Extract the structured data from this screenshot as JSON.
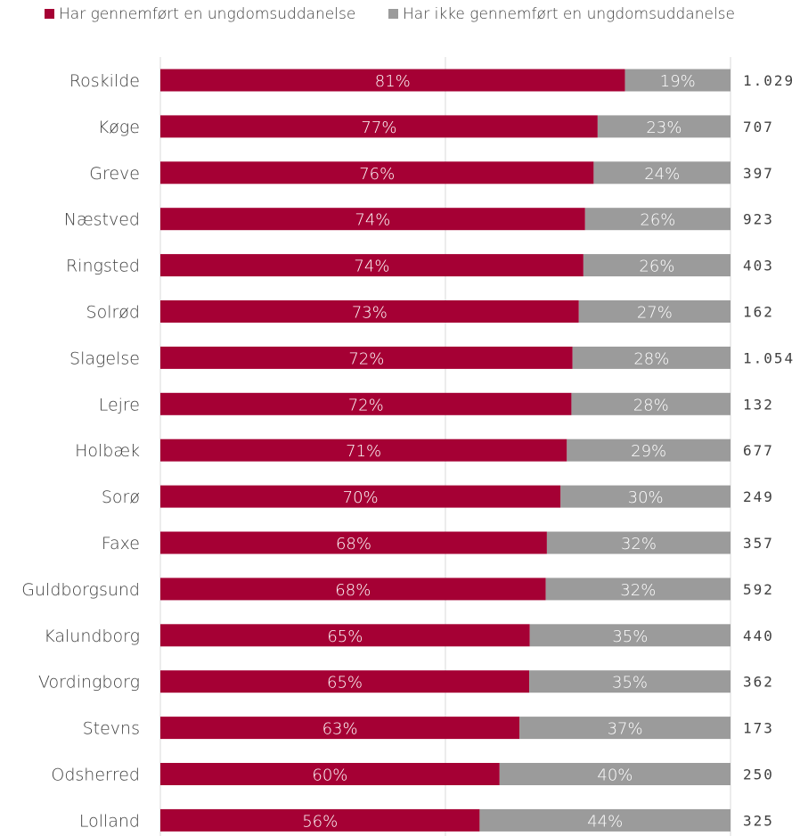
{
  "chart_data": {
    "type": "bar",
    "orientation": "horizontal",
    "stacked": true,
    "percent_stacked": true,
    "title": "",
    "xlabel": "",
    "ylabel": "",
    "xlim": [
      0,
      100
    ],
    "grid": true,
    "legend_position": "top",
    "categories": [
      "Roskilde",
      "Køge",
      "Greve",
      "Næstved",
      "Ringsted",
      "Solrød",
      "Slagelse",
      "Lejre",
      "Holbæk",
      "Sorø",
      "Faxe",
      "Guldborgsund",
      "Kalundborg",
      "Vordingborg",
      "Stevns",
      "Odsherred",
      "Lolland"
    ],
    "series": [
      {
        "name": "Har gennemført en ungdomsuddanelse",
        "color": "#A50034",
        "values": [
          81.5,
          76.7,
          76.0,
          74.5,
          74.2,
          73.4,
          72.3,
          72.1,
          71.3,
          70.2,
          67.8,
          67.6,
          64.8,
          64.7,
          63.0,
          59.5,
          56.0
        ],
        "labels": [
          "81%",
          "77%",
          "76%",
          "74%",
          "74%",
          "73%",
          "72%",
          "72%",
          "71%",
          "70%",
          "68%",
          "68%",
          "65%",
          "65%",
          "63%",
          "60%",
          "56%"
        ]
      },
      {
        "name": "Har ikke gennemført en ungdomsuddanelse",
        "color": "#9B9B9B",
        "values": [
          18.5,
          23.3,
          24.0,
          25.5,
          25.8,
          26.6,
          27.7,
          27.9,
          28.7,
          29.8,
          32.2,
          32.4,
          35.2,
          35.3,
          37.0,
          40.5,
          44.0
        ],
        "labels": [
          "19%",
          "23%",
          "24%",
          "26%",
          "26%",
          "27%",
          "28%",
          "28%",
          "29%",
          "30%",
          "32%",
          "32%",
          "35%",
          "35%",
          "37%",
          "40%",
          "44%"
        ]
      }
    ],
    "n_values": [
      "1.029",
      "707",
      "397",
      "923",
      "403",
      "162",
      "1.054",
      "132",
      "677",
      "249",
      "357",
      "592",
      "440",
      "362",
      "173",
      "250",
      "325"
    ]
  }
}
